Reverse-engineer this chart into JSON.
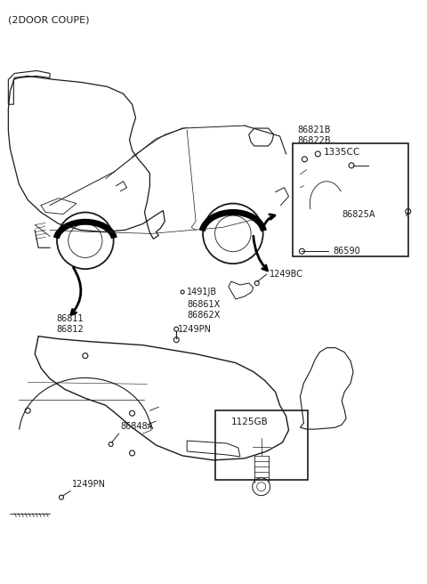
{
  "bg_color": "#ffffff",
  "line_color": "#1a1a1a",
  "text_color": "#1a1a1a",
  "title": "(2DOOR COUPE)",
  "labels": {
    "title": "(2DOOR COUPE)",
    "86821B": "86821B",
    "86822B": "86822B",
    "1335CC": "1335CC",
    "86825A": "86825A",
    "86590": "86590",
    "1249BC": "1249BC",
    "1491JB": "1491JB",
    "86861X": "86861X",
    "86862X": "86862X",
    "1249PN_mid": "1249PN",
    "86811": "86811",
    "86812": "86812",
    "86848A": "86848A",
    "1249PN_bot": "1249PN",
    "1125GB": "1125GB"
  }
}
